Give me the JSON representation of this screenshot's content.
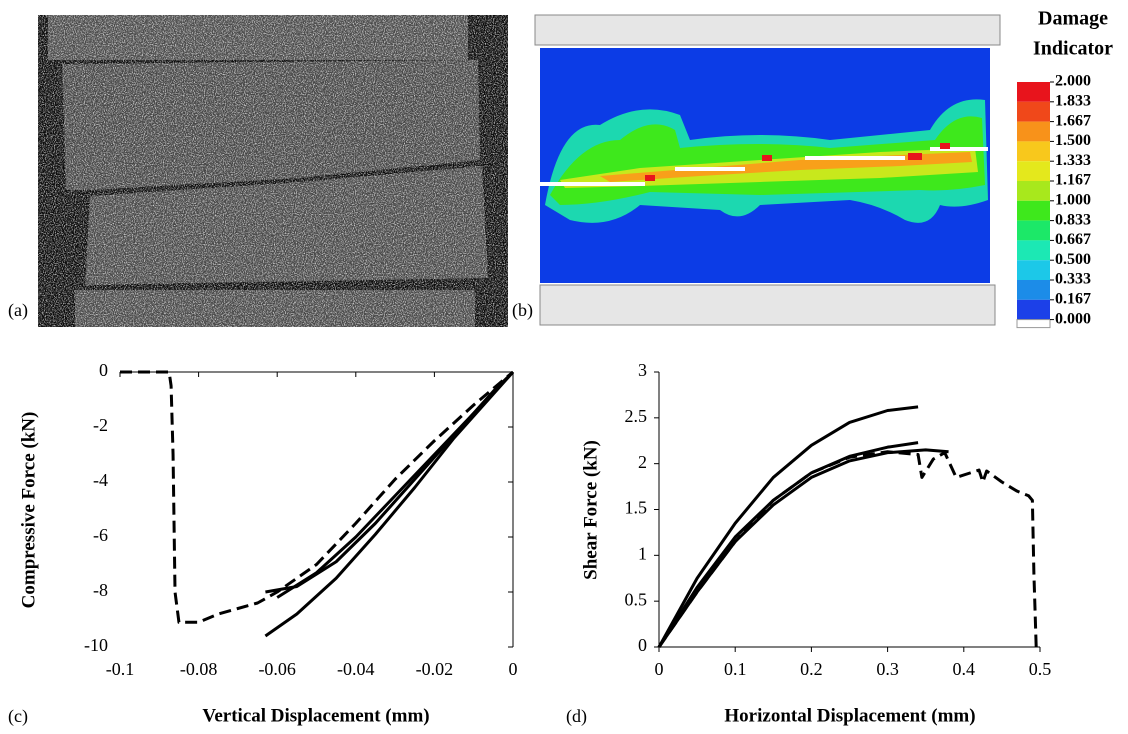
{
  "images": [
    {
      "label": "(a)"
    },
    {
      "label": "(b)"
    }
  ],
  "colorbar": {
    "title": [
      "Damage",
      "Indicator"
    ],
    "ticks": [
      {
        "value": 2,
        "label": "2.000"
      },
      {
        "value": 1.833,
        "label": "1.833"
      },
      {
        "value": 1.667,
        "label": "1.667"
      },
      {
        "value": 1.5,
        "label": "1.500"
      },
      {
        "value": 1.333,
        "label": "1.333"
      },
      {
        "value": 1.167,
        "label": "1.167"
      },
      {
        "value": 1,
        "label": "1.000"
      },
      {
        "value": 0.833,
        "label": "0.833"
      },
      {
        "value": 0.667,
        "label": "0.667"
      },
      {
        "value": 0.5,
        "label": "0.500"
      },
      {
        "value": 0.333,
        "label": "0.333"
      },
      {
        "value": 0.167,
        "label": "0.167"
      },
      {
        "value": 0,
        "label": "0.000"
      }
    ],
    "colors": [
      "#e8141c",
      "#f0481a",
      "#f8921a",
      "#f8c81c",
      "#e4e81c",
      "#a8e81c",
      "#3ee81c",
      "#1ce868",
      "#1ce8b4",
      "#1cc8e8",
      "#1c8ce8",
      "#1c40e8"
    ]
  },
  "chart_data": [
    {
      "type": "line",
      "panel_label": "(c)",
      "x_label": "Vertical Displacement (mm)",
      "y_label": "Compressive Force (kN)",
      "xlim": [
        -0.1,
        0
      ],
      "ylim": [
        -10,
        0
      ],
      "xticks": [
        -0.1,
        -0.08,
        -0.06,
        -0.04,
        -0.02,
        0
      ],
      "yticks": [
        0,
        -2,
        -4,
        -6,
        -8,
        -10
      ],
      "series": [
        {
          "color": "#000000",
          "dash": true,
          "x": [
            -0.1,
            -0.0875,
            -0.087,
            -0.0865,
            -0.086,
            -0.085,
            -0.08,
            -0.075,
            -0.07,
            -0.065,
            -0.06,
            -0.05,
            -0.04,
            -0.03,
            -0.02,
            -0.01,
            0
          ],
          "values": [
            0,
            0,
            -0.5,
            -3,
            -8,
            -9.1,
            -9.1,
            -8.8,
            -8.6,
            -8.4,
            -8.0,
            -7.0,
            -5.5,
            -3.9,
            -2.5,
            -1.2,
            0
          ]
        },
        {
          "color": "#000000",
          "dash": false,
          "x": [
            -0.063,
            -0.055,
            -0.045,
            -0.035,
            -0.025,
            -0.015,
            -0.005,
            0
          ],
          "values": [
            -9.6,
            -8.8,
            -7.5,
            -5.9,
            -4.2,
            -2.4,
            -0.8,
            0
          ]
        },
        {
          "color": "#000000",
          "dash": false,
          "x": [
            -0.063,
            -0.055,
            -0.045,
            -0.035,
            -0.025,
            -0.015,
            -0.005,
            0
          ],
          "values": [
            -8.0,
            -7.8,
            -6.9,
            -5.5,
            -3.9,
            -2.3,
            -0.7,
            0
          ]
        },
        {
          "color": "#000000",
          "dash": false,
          "x": [
            -0.06,
            -0.05,
            -0.04,
            -0.03,
            -0.02,
            -0.01,
            0
          ],
          "values": [
            -8.2,
            -7.3,
            -6.0,
            -4.5,
            -3.0,
            -1.5,
            0
          ]
        }
      ]
    },
    {
      "type": "line",
      "panel_label": "(d)",
      "x_label": "Horizontal Displacement (mm)",
      "y_label": "Shear Force (kN)",
      "xlim": [
        0,
        0.5
      ],
      "ylim": [
        0,
        3
      ],
      "xticks": [
        0,
        0.1,
        0.2,
        0.3,
        0.4,
        0.5
      ],
      "yticks": [
        0,
        0.5,
        1,
        1.5,
        2,
        2.5,
        3
      ],
      "series": [
        {
          "color": "#000000",
          "dash": false,
          "x": [
            0,
            0.05,
            0.1,
            0.15,
            0.2,
            0.25,
            0.3,
            0.34
          ],
          "values": [
            0,
            0.75,
            1.35,
            1.85,
            2.2,
            2.45,
            2.58,
            2.62
          ]
        },
        {
          "color": "#000000",
          "dash": false,
          "x": [
            0,
            0.05,
            0.1,
            0.15,
            0.2,
            0.25,
            0.3,
            0.34
          ],
          "values": [
            0,
            0.65,
            1.2,
            1.6,
            1.9,
            2.08,
            2.18,
            2.23
          ]
        },
        {
          "color": "#000000",
          "dash": false,
          "x": [
            0,
            0.05,
            0.1,
            0.15,
            0.2,
            0.25,
            0.3,
            0.35,
            0.38
          ],
          "values": [
            0,
            0.6,
            1.15,
            1.55,
            1.85,
            2.03,
            2.12,
            2.15,
            2.13
          ]
        },
        {
          "color": "#000000",
          "dash": true,
          "x": [
            0,
            0.05,
            0.1,
            0.15,
            0.2,
            0.25,
            0.3,
            0.34,
            0.345,
            0.36,
            0.375,
            0.39,
            0.42,
            0.425,
            0.43,
            0.45,
            0.47,
            0.485,
            0.49,
            0.492,
            0.495
          ],
          "values": [
            0,
            0.6,
            1.15,
            1.6,
            1.9,
            2.07,
            2.13,
            2.1,
            1.85,
            2.05,
            2.12,
            1.85,
            1.93,
            1.8,
            1.92,
            1.8,
            1.7,
            1.65,
            1.6,
            0.8,
            0
          ]
        }
      ]
    }
  ]
}
